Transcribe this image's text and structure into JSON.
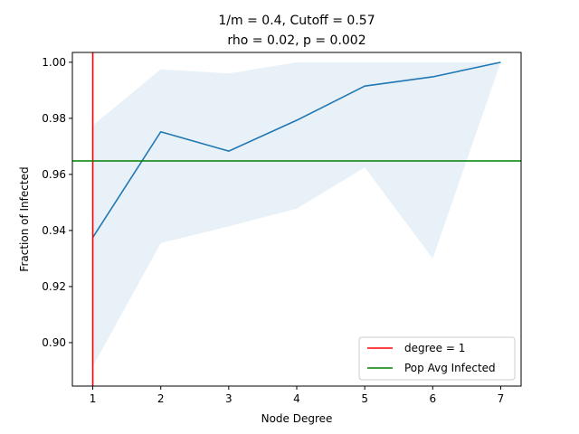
{
  "chart_data": {
    "type": "line",
    "title_line1": "1/m = 0.4, Cutoff = 0.57",
    "title_line2": "rho = 0.02, p = 0.002",
    "xlabel": "Node Degree",
    "ylabel": "Fraction of Infected",
    "x": [
      1,
      2,
      3,
      4,
      5,
      6,
      7
    ],
    "xlim": [
      0.7,
      7.3
    ],
    "ylim": [
      0.8845,
      1.0035
    ],
    "xticks": [
      "1",
      "2",
      "3",
      "4",
      "5",
      "6",
      "7"
    ],
    "yticks": [
      "0.90",
      "0.92",
      "0.94",
      "0.96",
      "0.98",
      "1.00"
    ],
    "series": [
      {
        "values": [
          0.9375,
          0.9752,
          0.9683,
          0.9793,
          0.9915,
          0.9948,
          1.0
        ],
        "color": "#1f77b4"
      }
    ],
    "band": {
      "upper": [
        0.9775,
        0.9975,
        0.996,
        1.0,
        1.0,
        1.0,
        1.0
      ],
      "lower": [
        0.8915,
        0.9355,
        0.9415,
        0.9478,
        0.9625,
        0.93,
        1.0
      ],
      "color": "#1f77b4",
      "opacity": 0.1
    },
    "reference_lines": [
      {
        "orientation": "vertical",
        "value": 1,
        "label": "degree = 1",
        "color": "#ff0000"
      },
      {
        "orientation": "horizontal",
        "value": 0.9648,
        "label": "Pop Avg Infected",
        "color": "#008000"
      }
    ],
    "legend_position": "lower-right",
    "grid": false
  }
}
